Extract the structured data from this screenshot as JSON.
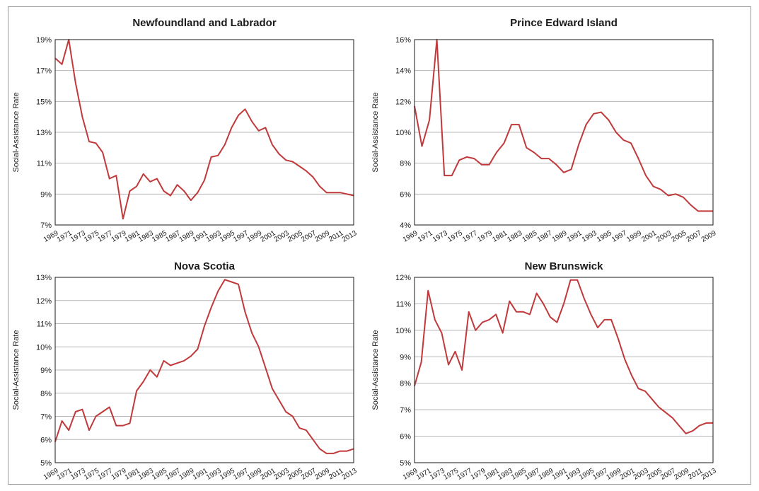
{
  "chart_data": [
    {
      "type": "line",
      "title": "Newfoundland and Labrador",
      "ylabel": "Social-Assistance Rate",
      "xlim": [
        1969,
        2013
      ],
      "ylim": [
        7,
        19
      ],
      "yticks": [
        7,
        9,
        11,
        13,
        15,
        17,
        19
      ],
      "ytick_labels": [
        "7%",
        "9%",
        "11%",
        "13%",
        "15%",
        "17%",
        "19%"
      ],
      "xticks": [
        "1969",
        "1971",
        "1973",
        "1975",
        "1977",
        "1979",
        "1981",
        "1983",
        "1985",
        "1987",
        "1989",
        "1991",
        "1993",
        "1995",
        "1997",
        "1999",
        "2001",
        "2003",
        "2005",
        "2007",
        "2009",
        "2011",
        "2013"
      ],
      "line_color": "#c0393b",
      "x": [
        1969,
        1970,
        1971,
        1972,
        1973,
        1974,
        1975,
        1976,
        1977,
        1978,
        1979,
        1980,
        1981,
        1982,
        1983,
        1984,
        1985,
        1986,
        1987,
        1988,
        1989,
        1990,
        1991,
        1992,
        1993,
        1994,
        1995,
        1996,
        1997,
        1998,
        1999,
        2000,
        2001,
        2002,
        2003,
        2004,
        2005,
        2006,
        2007,
        2008,
        2009,
        2010,
        2011,
        2012,
        2013
      ],
      "y": [
        17.8,
        17.4,
        19.0,
        16.2,
        14.0,
        12.4,
        12.3,
        11.7,
        10.0,
        10.2,
        7.4,
        9.2,
        9.5,
        10.3,
        9.8,
        10.0,
        9.2,
        8.9,
        9.6,
        9.2,
        8.6,
        9.1,
        9.9,
        11.4,
        11.5,
        12.2,
        13.3,
        14.1,
        14.5,
        13.7,
        13.1,
        13.3,
        12.2,
        11.6,
        11.2,
        11.1,
        10.8,
        10.5,
        10.1,
        9.5,
        9.1,
        9.1,
        9.1,
        9.0,
        8.9
      ]
    },
    {
      "type": "line",
      "title": "Prince Edward Island",
      "ylabel": "Social-Assistance Rate",
      "xlim": [
        1969,
        2009
      ],
      "ylim": [
        4,
        16
      ],
      "yticks": [
        4,
        6,
        8,
        10,
        12,
        14,
        16
      ],
      "ytick_labels": [
        "4%",
        "6%",
        "8%",
        "10%",
        "12%",
        "14%",
        "16%"
      ],
      "xticks": [
        "1969",
        "1971",
        "1973",
        "1975",
        "1977",
        "1979",
        "1981",
        "1983",
        "1985",
        "1987",
        "1989",
        "1991",
        "1993",
        "1995",
        "1997",
        "1999",
        "2001",
        "2003",
        "2005",
        "2007",
        "2009"
      ],
      "line_color": "#c0393b",
      "x": [
        1969,
        1970,
        1971,
        1972,
        1973,
        1974,
        1975,
        1976,
        1977,
        1978,
        1979,
        1980,
        1981,
        1982,
        1983,
        1984,
        1985,
        1986,
        1987,
        1988,
        1989,
        1990,
        1991,
        1992,
        1993,
        1994,
        1995,
        1996,
        1997,
        1998,
        1999,
        2000,
        2001,
        2002,
        2003,
        2004,
        2005,
        2006,
        2007,
        2008,
        2009
      ],
      "y": [
        11.7,
        9.1,
        10.8,
        16.0,
        7.2,
        7.2,
        8.2,
        8.4,
        8.3,
        7.9,
        7.9,
        8.7,
        9.3,
        10.5,
        10.5,
        9.0,
        8.7,
        8.3,
        8.3,
        7.9,
        7.4,
        7.6,
        9.2,
        10.5,
        11.2,
        11.3,
        10.8,
        10.0,
        9.5,
        9.3,
        8.3,
        7.2,
        6.5,
        6.3,
        5.9,
        6.0,
        5.8,
        5.3,
        4.9,
        4.9,
        4.9
      ]
    },
    {
      "type": "line",
      "title": "Nova Scotia",
      "ylabel": "Social-Assistance Rate",
      "xlim": [
        1969,
        2013
      ],
      "ylim": [
        5,
        13
      ],
      "yticks": [
        5,
        6,
        7,
        8,
        9,
        10,
        11,
        12,
        13
      ],
      "ytick_labels": [
        "5%",
        "6%",
        "7%",
        "8%",
        "9%",
        "10%",
        "11%",
        "12%",
        "13%"
      ],
      "xticks": [
        "1969",
        "1971",
        "1973",
        "1975",
        "1977",
        "1979",
        "1981",
        "1983",
        "1985",
        "1987",
        "1989",
        "1991",
        "1993",
        "1995",
        "1997",
        "1999",
        "2001",
        "2003",
        "2005",
        "2007",
        "2009",
        "2011",
        "2013"
      ],
      "line_color": "#c0393b",
      "x": [
        1969,
        1970,
        1971,
        1972,
        1973,
        1974,
        1975,
        1976,
        1977,
        1978,
        1979,
        1980,
        1981,
        1982,
        1983,
        1984,
        1985,
        1986,
        1987,
        1988,
        1989,
        1990,
        1991,
        1992,
        1993,
        1994,
        1995,
        1996,
        1997,
        1998,
        1999,
        2000,
        2001,
        2002,
        2003,
        2004,
        2005,
        2006,
        2007,
        2008,
        2009,
        2010,
        2011,
        2012,
        2013
      ],
      "y": [
        5.9,
        6.8,
        6.4,
        7.2,
        7.3,
        6.4,
        7.0,
        7.2,
        7.4,
        6.6,
        6.6,
        6.7,
        8.1,
        8.5,
        9.0,
        8.7,
        9.4,
        9.2,
        9.3,
        9.4,
        9.6,
        9.9,
        10.9,
        11.7,
        12.4,
        12.9,
        12.8,
        12.7,
        11.5,
        10.6,
        10.0,
        9.1,
        8.2,
        7.7,
        7.2,
        7.0,
        6.5,
        6.4,
        6.0,
        5.6,
        5.4,
        5.4,
        5.5,
        5.5,
        5.6
      ]
    },
    {
      "type": "line",
      "title": "New Brunswick",
      "ylabel": "Social-Assistance Rate",
      "xlim": [
        1969,
        2013
      ],
      "ylim": [
        5,
        12
      ],
      "yticks": [
        5,
        6,
        7,
        8,
        9,
        10,
        11,
        12
      ],
      "ytick_labels": [
        "5%",
        "6%",
        "7%",
        "8%",
        "9%",
        "10%",
        "11%",
        "12%"
      ],
      "xticks": [
        "1969",
        "1971",
        "1973",
        "1975",
        "1977",
        "1979",
        "1981",
        "1983",
        "1985",
        "1987",
        "1989",
        "1991",
        "1993",
        "1995",
        "1997",
        "1999",
        "2001",
        "2003",
        "2005",
        "2007",
        "2009",
        "2011",
        "2013"
      ],
      "line_color": "#c0393b",
      "x": [
        1969,
        1970,
        1971,
        1972,
        1973,
        1974,
        1975,
        1976,
        1977,
        1978,
        1979,
        1980,
        1981,
        1982,
        1983,
        1984,
        1985,
        1986,
        1987,
        1988,
        1989,
        1990,
        1991,
        1992,
        1993,
        1994,
        1995,
        1996,
        1997,
        1998,
        1999,
        2000,
        2001,
        2002,
        2003,
        2004,
        2005,
        2006,
        2007,
        2008,
        2009,
        2010,
        2011,
        2012,
        2013
      ],
      "y": [
        7.9,
        8.8,
        11.5,
        10.4,
        9.9,
        8.7,
        9.2,
        8.5,
        10.7,
        10.0,
        10.3,
        10.4,
        10.6,
        9.9,
        11.1,
        10.7,
        10.7,
        10.6,
        11.4,
        11.0,
        10.5,
        10.3,
        11.0,
        11.9,
        11.9,
        11.2,
        10.6,
        10.1,
        10.4,
        10.4,
        9.7,
        8.9,
        8.3,
        7.8,
        7.7,
        7.4,
        7.1,
        6.9,
        6.7,
        6.4,
        6.1,
        6.2,
        6.4,
        6.5,
        6.5
      ]
    }
  ]
}
